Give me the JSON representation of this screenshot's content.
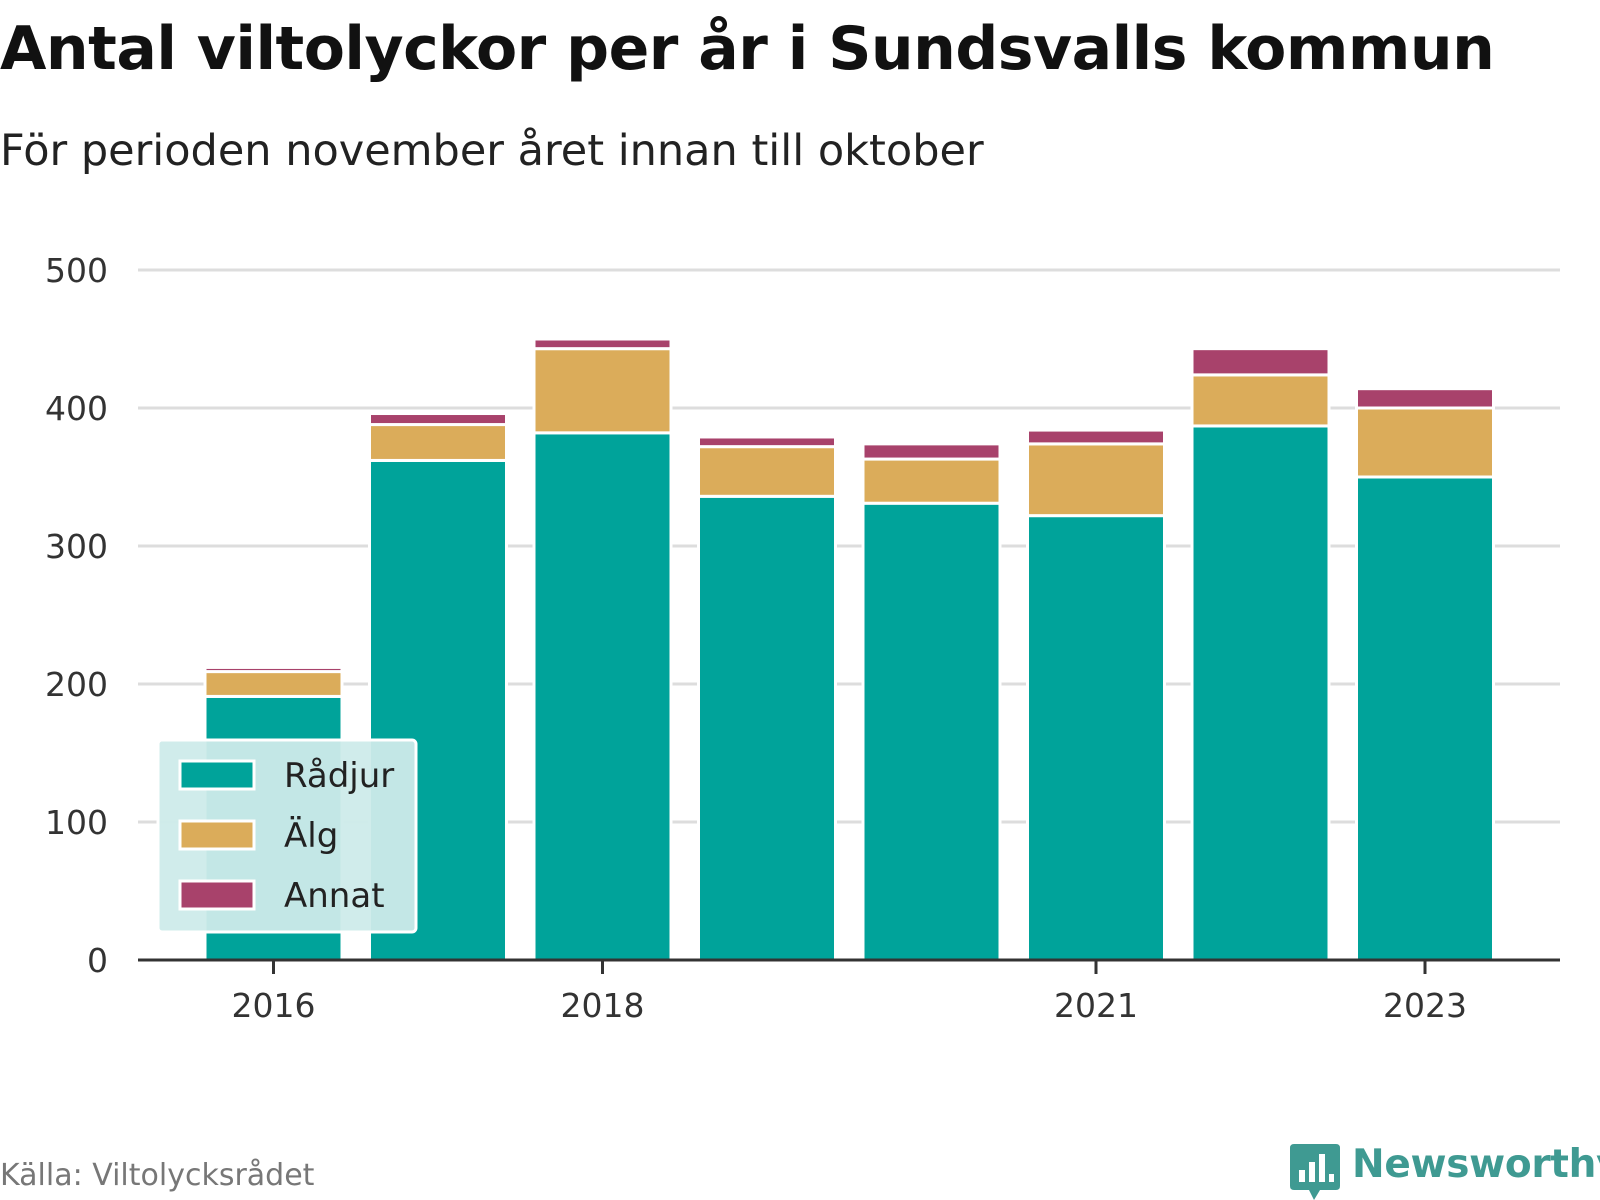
{
  "title": "Antal viltolyckor per år i Sundsvalls kommun",
  "subtitle": "För perioden november året innan till oktober",
  "source": "Källa: Viltolycksrådet",
  "brand": "Newsworthy",
  "colors": {
    "Rådjur": "#00a39a",
    "Älg": "#dbac5a",
    "Annat": "#a8426b",
    "grid": "#dddddd",
    "legend_bg": "#cdebea",
    "brand": "#3f9a92"
  },
  "chart_data": {
    "type": "bar",
    "stacked": true,
    "categories": [
      "2016",
      "2017",
      "2018",
      "2019",
      "2020",
      "2021",
      "2022",
      "2023"
    ],
    "x_tick_labels": [
      "2016",
      "2018",
      "2021",
      "2023"
    ],
    "series": [
      {
        "name": "Rådjur",
        "values": [
          191,
          362,
          382,
          336,
          331,
          322,
          387,
          350
        ]
      },
      {
        "name": "Älg",
        "values": [
          18,
          26,
          61,
          36,
          32,
          52,
          37,
          50
        ]
      },
      {
        "name": "Annat",
        "values": [
          3,
          8,
          7,
          7,
          11,
          10,
          19,
          14
        ]
      }
    ],
    "ylim": [
      0,
      500
    ],
    "y_ticks": [
      0,
      100,
      200,
      300,
      400,
      500
    ],
    "grid": true,
    "legend_position": "bottom-left"
  }
}
